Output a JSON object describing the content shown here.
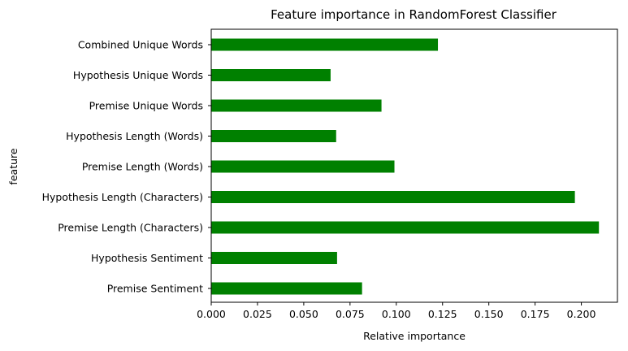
{
  "chart_data": {
    "type": "bar",
    "orientation": "horizontal",
    "title": "Feature importance in RandomForest Classifier",
    "xlabel": "Relative importance",
    "ylabel": "feature",
    "categories": [
      "Premise Sentiment",
      "Hypothesis Sentiment",
      "Premise Length (Characters)",
      "Hypothesis Length (Characters)",
      "Premise Length (Words)",
      "Hypothesis Length (Words)",
      "Premise Unique Words",
      "Hypothesis Unique Words",
      "Combined Unique Words"
    ],
    "values": [
      0.0815,
      0.068,
      0.2095,
      0.1965,
      0.099,
      0.0675,
      0.092,
      0.0645,
      0.1225
    ],
    "bar_color": "#008000",
    "xlim": [
      0,
      0.2195
    ],
    "xticks": [
      0.0,
      0.025,
      0.05,
      0.075,
      0.1,
      0.125,
      0.15,
      0.175,
      0.2
    ],
    "xtick_labels": [
      "0.000",
      "0.025",
      "0.050",
      "0.075",
      "0.100",
      "0.125",
      "0.150",
      "0.175",
      "0.200"
    ],
    "grid": false,
    "legend": "none"
  }
}
